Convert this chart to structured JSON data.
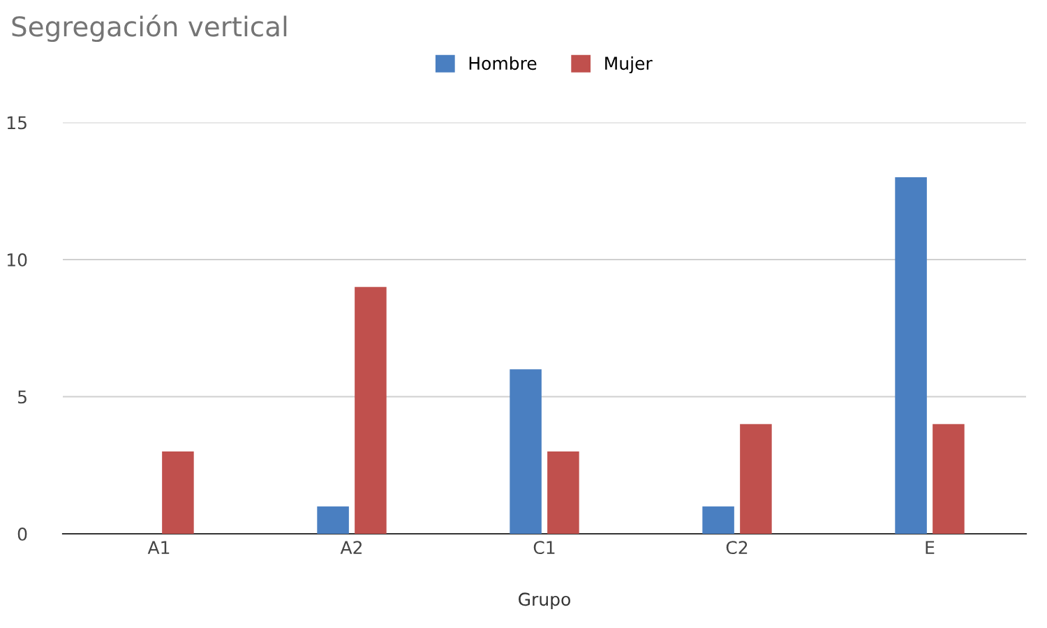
{
  "chart_data": {
    "type": "bar",
    "title": "Segregación vertical",
    "xlabel": "Grupo",
    "categories": [
      "A1",
      "A2",
      "C1",
      "C2",
      "E"
    ],
    "series": [
      {
        "name": "Hombre",
        "color": "#4a7fc1",
        "values": [
          0,
          1,
          6,
          1,
          13
        ]
      },
      {
        "name": "Mujer",
        "color": "#c0504d",
        "values": [
          3,
          9,
          3,
          4,
          4
        ]
      }
    ],
    "ylim": [
      0,
      15
    ],
    "yticks": [
      0,
      5,
      10,
      15
    ],
    "grid": "y",
    "legend": "top"
  }
}
